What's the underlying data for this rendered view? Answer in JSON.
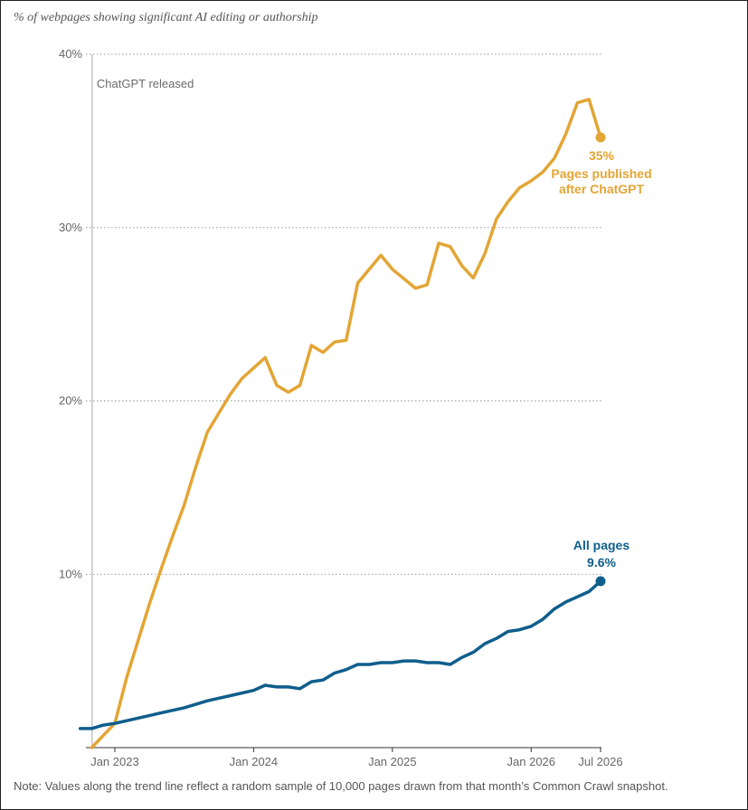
{
  "subtitle": "% of webpages showing significant AI editing or authorship",
  "note": "Note: Values along the trend line reflect a random sample of 10,000 pages drawn from that month’s Common Crawl snapshot.",
  "chart_data": {
    "type": "line",
    "title": "",
    "subtitle": "% of webpages showing significant AI editing or authorship",
    "xlabel": "",
    "ylabel": "",
    "xlim": [
      "2022-10",
      "2026-07"
    ],
    "ylim": [
      0,
      40
    ],
    "yticks": [
      10,
      20,
      30,
      40
    ],
    "ytick_labels": [
      "10%",
      "20%",
      "30%",
      "40%"
    ],
    "xticks": [
      "2023-01",
      "2024-01",
      "2025-01",
      "2026-01",
      "2026-07"
    ],
    "xtick_labels": [
      "Jan 2023",
      "Jan 2024",
      "Jan 2025",
      "Jan 2026",
      "Jul 2026"
    ],
    "grid": "horizontal dotted",
    "legend": "direct labels at line ends",
    "annotations": [
      {
        "date": "2022-11",
        "text": "ChatGPT released"
      }
    ],
    "series": [
      {
        "name": "Pages published after ChatGPT",
        "color": "#e3a534",
        "end_label": "35%",
        "end_name_lines": [
          "Pages published",
          "after ChatGPT"
        ],
        "points": [
          [
            "2022-11",
            0.0
          ],
          [
            "2022-12",
            0.7
          ],
          [
            "2023-01",
            1.4
          ],
          [
            "2023-02",
            4.0
          ],
          [
            "2023-04",
            8.3
          ],
          [
            "2023-05",
            10.3
          ],
          [
            "2023-06",
            12.2
          ],
          [
            "2023-07",
            14.0
          ],
          [
            "2023-08",
            16.2
          ],
          [
            "2023-09",
            18.2
          ],
          [
            "2023-10",
            19.3
          ],
          [
            "2023-11",
            20.4
          ],
          [
            "2023-12",
            21.3
          ],
          [
            "2024-02",
            22.5
          ],
          [
            "2024-03",
            20.9
          ],
          [
            "2024-04",
            20.5
          ],
          [
            "2024-05",
            20.9
          ],
          [
            "2024-06",
            23.2
          ],
          [
            "2024-07",
            22.8
          ],
          [
            "2024-08",
            23.4
          ],
          [
            "2024-09",
            23.5
          ],
          [
            "2024-10",
            26.8
          ],
          [
            "2024-12",
            28.4
          ],
          [
            "2025-01",
            27.6
          ],
          [
            "2025-03",
            26.5
          ],
          [
            "2025-04",
            26.7
          ],
          [
            "2025-05",
            29.1
          ],
          [
            "2025-06",
            28.9
          ],
          [
            "2025-07",
            27.8
          ],
          [
            "2025-08",
            27.1
          ],
          [
            "2025-09",
            28.5
          ],
          [
            "2025-10",
            30.5
          ],
          [
            "2025-11",
            31.5
          ],
          [
            "2025-12",
            32.3
          ],
          [
            "2026-01",
            32.7
          ],
          [
            "2026-02",
            33.2
          ],
          [
            "2026-03",
            34.0
          ],
          [
            "2026-04",
            35.4
          ],
          [
            "2026-05",
            37.2
          ],
          [
            "2026-06",
            37.4
          ],
          [
            "2026-07",
            35.2
          ]
        ]
      },
      {
        "name": "All pages",
        "color": "#0f5e8c",
        "end_label": "9.6%",
        "end_name_lines": [
          "All pages"
        ],
        "points": [
          [
            "2022-10",
            1.1
          ],
          [
            "2022-11",
            1.1
          ],
          [
            "2022-12",
            1.3
          ],
          [
            "2023-01",
            1.4
          ],
          [
            "2023-03",
            1.7
          ],
          [
            "2023-05",
            2.0
          ],
          [
            "2023-07",
            2.3
          ],
          [
            "2023-09",
            2.7
          ],
          [
            "2023-11",
            3.0
          ],
          [
            "2024-01",
            3.3
          ],
          [
            "2024-02",
            3.6
          ],
          [
            "2024-03",
            3.5
          ],
          [
            "2024-04",
            3.5
          ],
          [
            "2024-05",
            3.4
          ],
          [
            "2024-06",
            3.8
          ],
          [
            "2024-07",
            3.9
          ],
          [
            "2024-08",
            4.3
          ],
          [
            "2024-09",
            4.5
          ],
          [
            "2024-10",
            4.8
          ],
          [
            "2024-11",
            4.8
          ],
          [
            "2024-12",
            4.9
          ],
          [
            "2025-01",
            4.9
          ],
          [
            "2025-02",
            5.0
          ],
          [
            "2025-03",
            5.0
          ],
          [
            "2025-04",
            4.9
          ],
          [
            "2025-05",
            4.9
          ],
          [
            "2025-06",
            4.8
          ],
          [
            "2025-07",
            5.2
          ],
          [
            "2025-08",
            5.5
          ],
          [
            "2025-09",
            6.0
          ],
          [
            "2025-10",
            6.3
          ],
          [
            "2025-11",
            6.7
          ],
          [
            "2025-12",
            6.8
          ],
          [
            "2026-01",
            7.0
          ],
          [
            "2026-02",
            7.4
          ],
          [
            "2026-03",
            8.0
          ],
          [
            "2026-04",
            8.4
          ],
          [
            "2026-05",
            8.7
          ],
          [
            "2026-06",
            9.0
          ],
          [
            "2026-07",
            9.6
          ]
        ]
      }
    ]
  }
}
